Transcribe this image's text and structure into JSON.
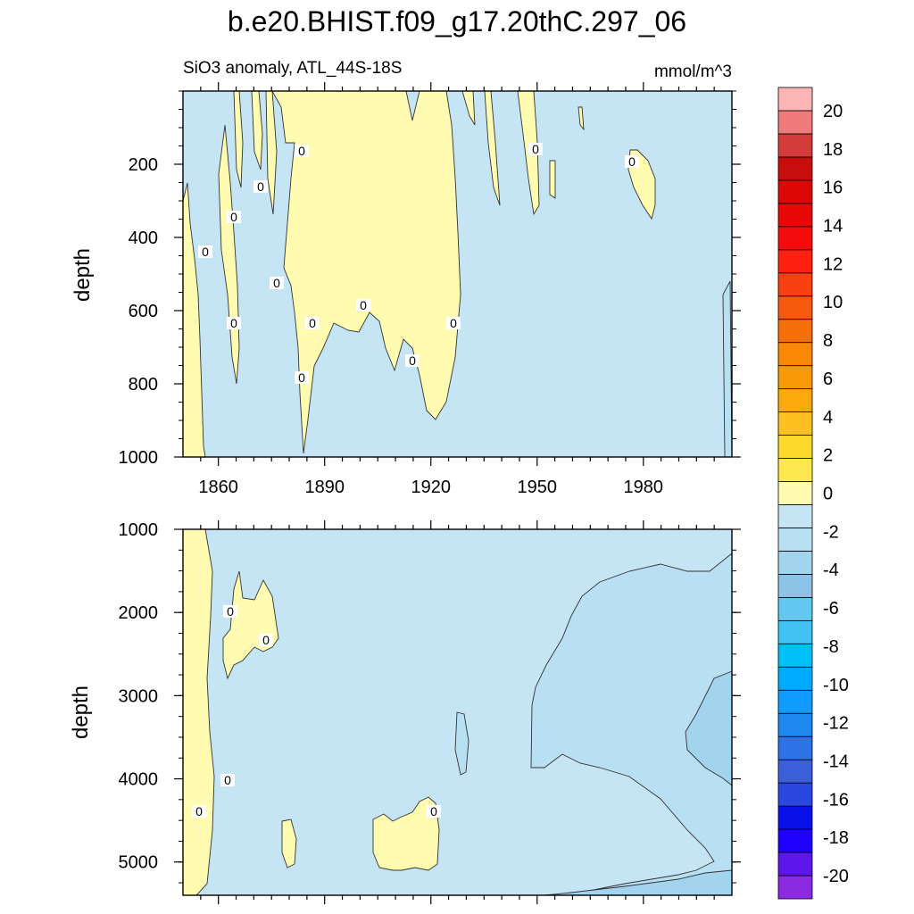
{
  "chart_data": {
    "type": "heatmap",
    "title": "b.e20.BHIST.f09_g17.20thC.297_06",
    "subtitle_left": "SiO3 anomaly, ATL_44S-18S",
    "subtitle_right": "mmol/m^3",
    "contour_label": "0",
    "colorbar": {
      "colors": [
        "#8a2be2",
        "#5e17eb",
        "#1f00ff",
        "#0a10e8",
        "#2a48e0",
        "#3b5fd8",
        "#2e72e8",
        "#1e88f0",
        "#109bff",
        "#00aaff",
        "#00c0f8",
        "#41c1f0",
        "#62c8f0",
        "#8ec3e8",
        "#a2d4ee",
        "#b8dff2",
        "#c5e5f5",
        "#fffbb0",
        "#fde84f",
        "#fdd82d",
        "#fcc020",
        "#fbaa0d",
        "#f89a08",
        "#f88805",
        "#f56f0a",
        "#f55a0f",
        "#f84010",
        "#ff2010",
        "#f40c0c",
        "#e80808",
        "#dc0707",
        "#c80d0d",
        "#d43c3c",
        "#f07b7b",
        "#fbb5b5"
      ],
      "tick_labels": [
        "20",
        "18",
        "16",
        "14",
        "12",
        "10",
        "8",
        "6",
        "4",
        "2",
        "0",
        "-2",
        "-4",
        "-6",
        "-8",
        "-10",
        "-12",
        "-14",
        "-16",
        "-18",
        "-20"
      ]
    },
    "panels": [
      {
        "name": "upper",
        "ylabel": "depth",
        "xlim": [
          1850,
          2005
        ],
        "ylim": [
          1000,
          0
        ],
        "x_tick_labels": [
          "1860",
          "1890",
          "1920",
          "1950",
          "1980"
        ],
        "y_tick_labels": [
          "200",
          "400",
          "600",
          "800",
          "1000"
        ]
      },
      {
        "name": "lower",
        "ylabel": "depth",
        "xlim": [
          1850,
          2005
        ],
        "ylim": [
          5400,
          1000
        ],
        "y_tick_labels": [
          "1000",
          "2000",
          "3000",
          "4000",
          "5000"
        ]
      }
    ]
  }
}
